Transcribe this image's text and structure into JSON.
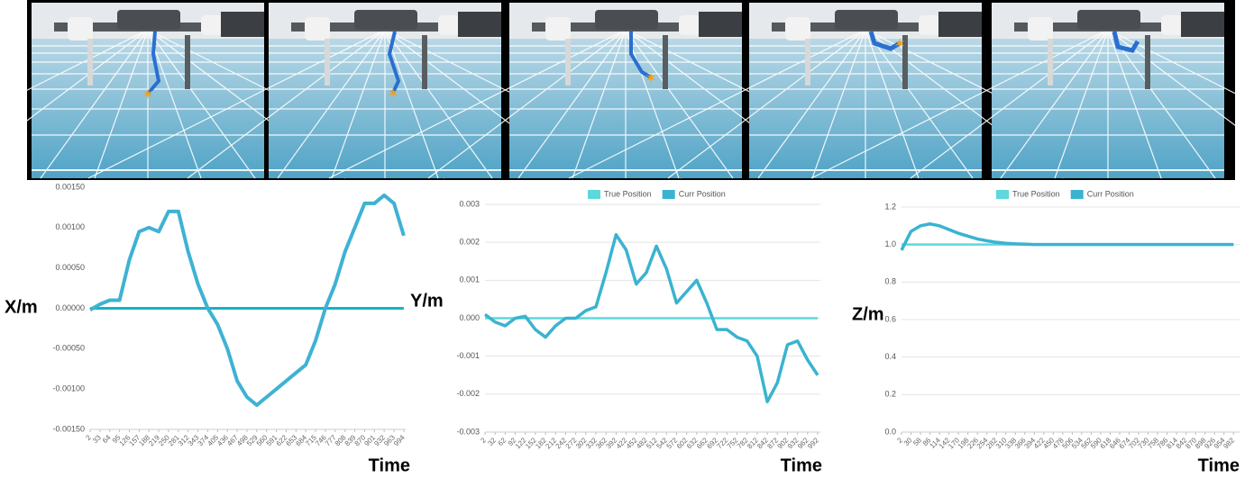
{
  "chart_data": [
    {
      "type": "line",
      "y_label": "X/m",
      "x_label": "Time",
      "grid": false,
      "xlim": [
        2,
        1000
      ],
      "xticks": [
        2,
        33,
        64,
        95,
        126,
        157,
        188,
        219,
        250,
        281,
        312,
        343,
        374,
        405,
        436,
        467,
        498,
        529,
        560,
        591,
        622,
        653,
        684,
        715,
        746,
        777,
        808,
        839,
        870,
        901,
        932,
        963,
        994
      ],
      "ylim": [
        -0.0015,
        0.0015
      ],
      "yticks": [
        {
          "value": -0.0015,
          "label": "-0.00150"
        },
        {
          "value": -0.001,
          "label": "-0.00100"
        },
        {
          "value": -0.0005,
          "label": "-0.00050"
        },
        {
          "value": 0,
          "label": "0.00000"
        },
        {
          "value": 0.0005,
          "label": "0.00050"
        },
        {
          "value": 0.001,
          "label": "0.00100"
        },
        {
          "value": 0.0015,
          "label": "0.00150"
        }
      ],
      "x": [
        2,
        33,
        64,
        95,
        126,
        157,
        188,
        219,
        250,
        281,
        312,
        343,
        374,
        405,
        436,
        467,
        498,
        529,
        560,
        591,
        622,
        653,
        684,
        715,
        746,
        777,
        808,
        839,
        870,
        901,
        932,
        963,
        994
      ],
      "series": [
        {
          "color": "#17b3c1",
          "values": [
            0,
            0,
            0,
            0,
            0,
            0,
            0,
            0,
            0,
            0,
            0,
            0,
            0,
            0,
            0,
            0,
            0,
            0,
            0,
            0,
            0,
            0,
            0,
            0,
            0,
            0,
            0,
            0,
            0,
            0,
            0,
            0,
            0
          ]
        },
        {
          "color": "#3fb2d4",
          "values": [
            -2e-05,
            5e-05,
            0.0001,
            0.0001,
            0.0006,
            0.00095,
            0.001,
            0.00095,
            0.0012,
            0.0012,
            0.0007,
            0.0003,
            0.0,
            -0.0002,
            -0.0005,
            -0.0009,
            -0.0011,
            -0.0012,
            -0.0011,
            -0.001,
            -0.0009,
            -0.0008,
            -0.0007,
            -0.0004,
            0.0,
            0.0003,
            0.0007,
            0.001,
            0.0013,
            0.0013,
            0.0014,
            0.0013,
            0.0009
          ]
        }
      ]
    },
    {
      "type": "line",
      "y_label": "Y/m",
      "x_label": "Time",
      "grid": true,
      "legend": "top",
      "xlim": [
        2,
        1000
      ],
      "xticks": [
        2,
        32,
        62,
        92,
        122,
        152,
        182,
        212,
        242,
        272,
        302,
        332,
        362,
        392,
        422,
        452,
        482,
        512,
        542,
        572,
        602,
        632,
        662,
        692,
        722,
        752,
        782,
        812,
        842,
        872,
        902,
        932,
        962,
        992
      ],
      "ylim": [
        -0.003,
        0.003
      ],
      "yticks": [
        -0.003,
        -0.002,
        -0.001,
        {
          "value": 0,
          "label": "0.000"
        },
        0.001,
        0.002,
        0.003
      ],
      "x": [
        2,
        32,
        62,
        92,
        122,
        152,
        182,
        212,
        242,
        272,
        302,
        332,
        362,
        392,
        422,
        452,
        482,
        512,
        542,
        572,
        602,
        632,
        662,
        692,
        722,
        752,
        782,
        812,
        842,
        872,
        902,
        932,
        962,
        992
      ],
      "series": [
        {
          "name": "True Position",
          "color": "#5dd8dc",
          "values": [
            0,
            0,
            0,
            0,
            0,
            0,
            0,
            0,
            0,
            0,
            0,
            0,
            0,
            0,
            0,
            0,
            0,
            0,
            0,
            0,
            0,
            0,
            0,
            0,
            0,
            0,
            0,
            0,
            0,
            0,
            0,
            0,
            0,
            0
          ]
        },
        {
          "name": "Curr Position",
          "color": "#3ab3d0",
          "values": [
            0.0001,
            -0.0001,
            -0.0002,
            0.0,
            5e-05,
            -0.0003,
            -0.0005,
            -0.0002,
            0.0,
            0.0,
            0.0002,
            0.0003,
            0.0012,
            0.0022,
            0.0018,
            0.0009,
            0.0012,
            0.0019,
            0.0013,
            0.0004,
            0.0007,
            0.001,
            0.0004,
            -0.0003,
            -0.0003,
            -0.0005,
            -0.0006,
            -0.001,
            -0.0022,
            -0.0017,
            -0.0007,
            -0.0006,
            -0.0011,
            -0.0015
          ]
        }
      ]
    },
    {
      "type": "line",
      "y_label": "Z/m",
      "x_label": "Time",
      "grid": true,
      "legend": "top",
      "xlim": [
        2,
        1000
      ],
      "xticks": [
        2,
        30,
        58,
        86,
        114,
        142,
        170,
        198,
        226,
        254,
        282,
        310,
        338,
        366,
        394,
        422,
        450,
        478,
        506,
        534,
        562,
        590,
        618,
        646,
        674,
        702,
        730,
        758,
        786,
        814,
        842,
        870,
        898,
        926,
        954,
        982
      ],
      "ylim": [
        0,
        1.2
      ],
      "yticks": [
        {
          "value": 0,
          "label": "0.0"
        },
        0.2,
        0.4,
        0.6,
        0.8,
        {
          "value": 1,
          "label": "1.0"
        },
        1.2
      ],
      "x": [
        2,
        30,
        58,
        86,
        114,
        142,
        170,
        198,
        226,
        254,
        282,
        310,
        338,
        366,
        394,
        422,
        450,
        478,
        506,
        534,
        562,
        590,
        618,
        646,
        674,
        702,
        730,
        758,
        786,
        814,
        842,
        870,
        898,
        926,
        954,
        982
      ],
      "series": [
        {
          "name": "True Position",
          "color": "#5dd8dc",
          "values": [
            1,
            1,
            1,
            1,
            1,
            1,
            1,
            1,
            1,
            1,
            1,
            1,
            1,
            1,
            1,
            1,
            1,
            1,
            1,
            1,
            1,
            1,
            1,
            1,
            1,
            1,
            1,
            1,
            1,
            1,
            1,
            1,
            1,
            1,
            1,
            1
          ]
        },
        {
          "name": "Curr Position",
          "color": "#3ab3d0",
          "values": [
            0.97,
            1.07,
            1.1,
            1.11,
            1.1,
            1.08,
            1.06,
            1.045,
            1.03,
            1.02,
            1.012,
            1.007,
            1.004,
            1.002,
            1,
            1,
            1,
            1,
            1,
            1,
            1,
            1,
            1,
            1,
            1,
            1,
            1,
            1,
            1,
            1,
            1,
            1,
            1,
            1,
            1,
            1
          ]
        }
      ]
    }
  ]
}
